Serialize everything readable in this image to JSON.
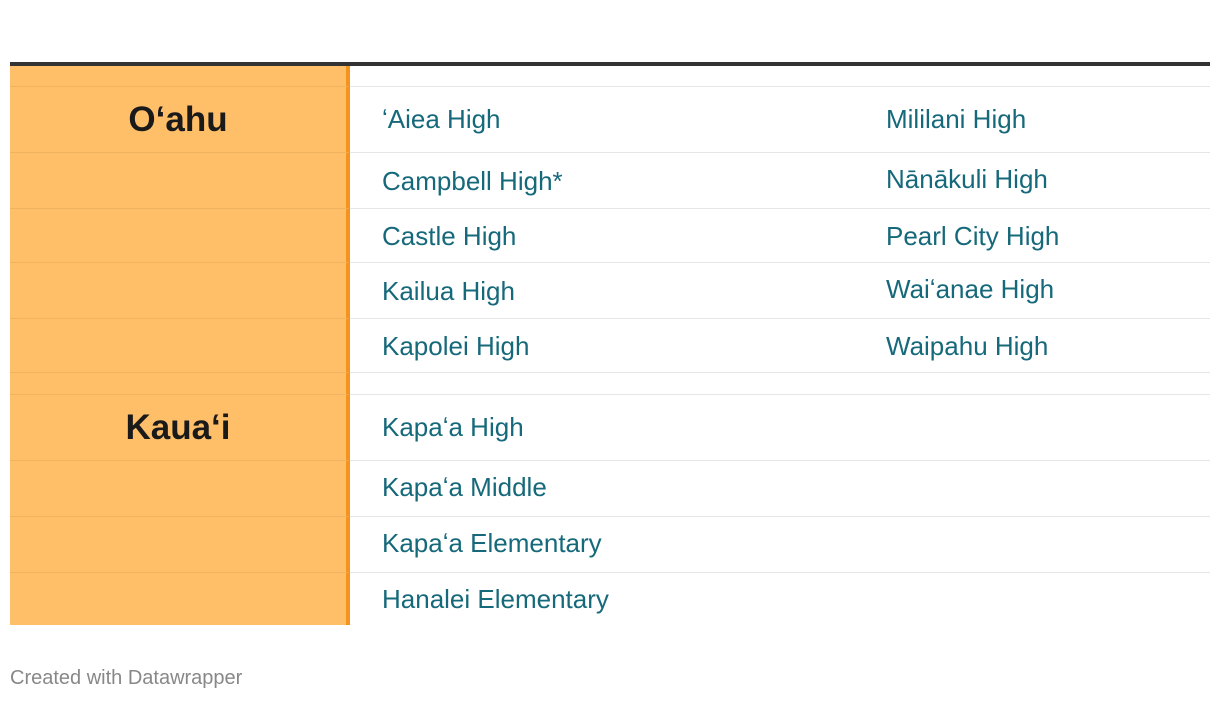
{
  "table": {
    "oahu": {
      "label": "Oʻahu",
      "col1": [
        "ʻAiea High",
        "Campbell High*",
        "Castle High",
        "Kailua High",
        "Kapolei High"
      ],
      "col2": [
        "Mililani High",
        "Nānākuli High",
        "Pearl City High",
        "Waiʻanae High",
        "Waipahu High"
      ]
    },
    "kauai": {
      "label": "Kauaʻi",
      "col1": [
        "Kapaʻa High",
        "Kapaʻa Middle",
        "Kapaʻa Elementary",
        "Hanalei Elementary"
      ]
    }
  },
  "colors": {
    "label_bg": "#ffbf69",
    "label_border": "#f5931f",
    "link_text": "#16697a",
    "top_rule": "#333333"
  },
  "footer": {
    "credit": "Created with Datawrapper"
  }
}
